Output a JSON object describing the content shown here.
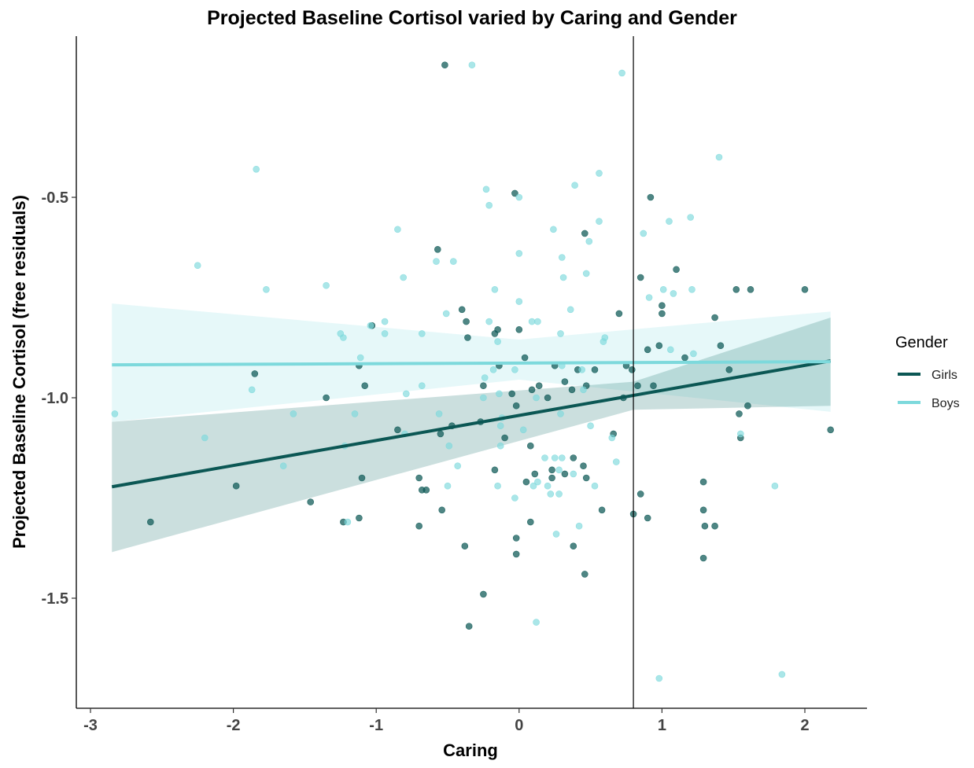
{
  "chart_data": {
    "type": "scatter",
    "title": "Projected Baseline Cortisol varied by Caring and Gender",
    "xlabel": "Caring",
    "ylabel": "Projected Baseline Cortisol (free residuals)",
    "xlim": [
      -3.1,
      2.45
    ],
    "ylim": [
      -1.78,
      -0.1
    ],
    "x_ticks": [
      -3,
      -2,
      -1,
      0,
      1,
      2
    ],
    "x_tick_labels": [
      "-3",
      "-2",
      "-1",
      "0",
      "1",
      "2"
    ],
    "y_ticks": [
      -0.5,
      -1.0,
      -1.5
    ],
    "y_tick_labels": [
      "-0.5",
      "-1.0",
      "-1.5"
    ],
    "vline_x": 0.8,
    "grid": false,
    "legend": {
      "title": "Gender",
      "position": "right"
    },
    "series": [
      {
        "name": "Girls",
        "color": "#0b5754",
        "fit": {
          "x": [
            -2.85,
            2.18
          ],
          "y": [
            -1.222,
            -0.908
          ]
        },
        "band": {
          "x": [
            -2.85,
            0.8,
            2.18
          ],
          "upper": [
            -1.06,
            -0.96,
            -0.8
          ],
          "lower": [
            -1.385,
            -1.03,
            -1.02
          ]
        },
        "points": [
          [
            -0.52,
            -0.17
          ],
          [
            -0.03,
            -0.49
          ],
          [
            -0.57,
            -0.63
          ],
          [
            0.92,
            -0.5
          ],
          [
            0.46,
            -0.59
          ],
          [
            1.1,
            -0.68
          ],
          [
            0.85,
            -0.7
          ],
          [
            1.52,
            -0.73
          ],
          [
            1.62,
            -0.73
          ],
          [
            2.0,
            -0.73
          ],
          [
            1.0,
            -0.77
          ],
          [
            1.0,
            -0.79
          ],
          [
            0.7,
            -0.79
          ],
          [
            -0.4,
            -0.78
          ],
          [
            -0.37,
            -0.81
          ],
          [
            -1.03,
            -0.82
          ],
          [
            -0.15,
            -0.83
          ],
          [
            0.0,
            -0.83
          ],
          [
            1.37,
            -0.8
          ],
          [
            -0.17,
            -0.84
          ],
          [
            -0.36,
            -0.85
          ],
          [
            1.41,
            -0.87
          ],
          [
            0.98,
            -0.87
          ],
          [
            0.9,
            -0.88
          ],
          [
            1.16,
            -0.9
          ],
          [
            -1.12,
            -0.92
          ],
          [
            -0.14,
            -0.92
          ],
          [
            -1.85,
            -0.94
          ],
          [
            0.04,
            -0.9
          ],
          [
            0.25,
            -0.92
          ],
          [
            0.41,
            -0.93
          ],
          [
            0.53,
            -0.93
          ],
          [
            0.75,
            -0.92
          ],
          [
            0.79,
            -0.93
          ],
          [
            0.83,
            -0.97
          ],
          [
            0.94,
            -0.97
          ],
          [
            1.47,
            -0.93
          ],
          [
            -0.25,
            -0.97
          ],
          [
            -1.08,
            -0.97
          ],
          [
            0.47,
            -0.97
          ],
          [
            0.32,
            -0.96
          ],
          [
            0.37,
            -0.98
          ],
          [
            0.09,
            -0.98
          ],
          [
            0.14,
            -0.97
          ],
          [
            -1.35,
            -1.0
          ],
          [
            0.2,
            -1.0
          ],
          [
            -0.05,
            -0.99
          ],
          [
            -0.02,
            -1.02
          ],
          [
            0.73,
            -1.0
          ],
          [
            1.54,
            -1.04
          ],
          [
            1.6,
            -1.02
          ],
          [
            -0.47,
            -1.07
          ],
          [
            -0.27,
            -1.06
          ],
          [
            -0.55,
            -1.09
          ],
          [
            -0.85,
            -1.08
          ],
          [
            -0.1,
            -1.1
          ],
          [
            0.66,
            -1.09
          ],
          [
            2.18,
            -1.08
          ],
          [
            1.55,
            -1.1
          ],
          [
            0.08,
            -1.12
          ],
          [
            0.38,
            -1.15
          ],
          [
            0.45,
            -1.17
          ],
          [
            0.11,
            -1.19
          ],
          [
            0.23,
            -1.18
          ],
          [
            0.32,
            -1.19
          ],
          [
            -0.17,
            -1.18
          ],
          [
            0.05,
            -1.21
          ],
          [
            0.23,
            -1.2
          ],
          [
            0.47,
            -1.2
          ],
          [
            1.29,
            -1.21
          ],
          [
            -1.98,
            -1.22
          ],
          [
            -0.7,
            -1.2
          ],
          [
            -1.1,
            -1.2
          ],
          [
            -0.68,
            -1.23
          ],
          [
            -0.65,
            -1.23
          ],
          [
            0.85,
            -1.24
          ],
          [
            -1.46,
            -1.26
          ],
          [
            -0.54,
            -1.28
          ],
          [
            0.58,
            -1.28
          ],
          [
            0.8,
            -1.29
          ],
          [
            0.9,
            -1.3
          ],
          [
            1.29,
            -1.28
          ],
          [
            -2.58,
            -1.31
          ],
          [
            -1.12,
            -1.3
          ],
          [
            -1.23,
            -1.31
          ],
          [
            -0.7,
            -1.32
          ],
          [
            0.08,
            -1.31
          ],
          [
            1.3,
            -1.32
          ],
          [
            1.37,
            -1.32
          ],
          [
            0.38,
            -1.37
          ],
          [
            -0.38,
            -1.37
          ],
          [
            -0.02,
            -1.35
          ],
          [
            -0.02,
            -1.39
          ],
          [
            1.29,
            -1.4
          ],
          [
            0.46,
            -1.44
          ],
          [
            -0.25,
            -1.49
          ],
          [
            -0.35,
            -1.57
          ]
        ]
      },
      {
        "name": "Boys",
        "color": "#7dd9dc",
        "fit": {
          "x": [
            -2.85,
            2.18
          ],
          "y": [
            -0.918,
            -0.91
          ]
        },
        "band": {
          "x": [
            -2.85,
            0.0,
            2.18
          ],
          "upper": [
            -0.765,
            -0.855,
            -0.785
          ],
          "lower": [
            -1.06,
            -0.955,
            -1.035
          ]
        },
        "points": [
          [
            -0.33,
            -0.17
          ],
          [
            0.72,
            -0.19
          ],
          [
            1.4,
            -0.4
          ],
          [
            -1.84,
            -0.43
          ],
          [
            0.56,
            -0.44
          ],
          [
            0.39,
            -0.47
          ],
          [
            -0.23,
            -0.48
          ],
          [
            -0.21,
            -0.52
          ],
          [
            0.0,
            -0.5
          ],
          [
            1.2,
            -0.55
          ],
          [
            0.56,
            -0.56
          ],
          [
            1.05,
            -0.56
          ],
          [
            0.24,
            -0.58
          ],
          [
            -0.85,
            -0.58
          ],
          [
            0.87,
            -0.59
          ],
          [
            0.49,
            -0.61
          ],
          [
            0.3,
            -0.65
          ],
          [
            0.0,
            -0.64
          ],
          [
            -0.58,
            -0.66
          ],
          [
            -0.46,
            -0.66
          ],
          [
            -2.25,
            -0.67
          ],
          [
            0.47,
            -0.69
          ],
          [
            0.31,
            -0.7
          ],
          [
            -0.81,
            -0.7
          ],
          [
            -1.35,
            -0.72
          ],
          [
            -1.77,
            -0.73
          ],
          [
            -0.17,
            -0.73
          ],
          [
            1.01,
            -0.73
          ],
          [
            1.21,
            -0.73
          ],
          [
            1.08,
            -0.74
          ],
          [
            0.91,
            -0.75
          ],
          [
            0.0,
            -0.76
          ],
          [
            -0.51,
            -0.79
          ],
          [
            0.09,
            -0.81
          ],
          [
            -0.94,
            -0.81
          ],
          [
            -0.21,
            -0.81
          ],
          [
            0.13,
            -0.81
          ],
          [
            0.36,
            -0.78
          ],
          [
            -1.04,
            -0.82
          ],
          [
            -1.25,
            -0.84
          ],
          [
            -0.94,
            -0.84
          ],
          [
            -1.23,
            -0.85
          ],
          [
            -0.68,
            -0.84
          ],
          [
            0.29,
            -0.84
          ],
          [
            0.6,
            -0.85
          ],
          [
            0.59,
            -0.86
          ],
          [
            -0.15,
            -0.86
          ],
          [
            1.06,
            -0.88
          ],
          [
            1.22,
            -0.89
          ],
          [
            -1.11,
            -0.9
          ],
          [
            0.3,
            -0.92
          ],
          [
            0.44,
            -0.93
          ],
          [
            -0.18,
            -0.93
          ],
          [
            -0.03,
            -0.93
          ],
          [
            -0.24,
            -0.95
          ],
          [
            -0.68,
            -0.97
          ],
          [
            -0.79,
            -0.99
          ],
          [
            0.45,
            -0.98
          ],
          [
            -1.87,
            -0.98
          ],
          [
            -0.14,
            -0.99
          ],
          [
            -0.25,
            -1.0
          ],
          [
            0.12,
            -1.0
          ],
          [
            -1.15,
            -1.04
          ],
          [
            -1.58,
            -1.04
          ],
          [
            -2.83,
            -1.04
          ],
          [
            -0.56,
            -1.04
          ],
          [
            -0.12,
            -1.05
          ],
          [
            0.29,
            -1.04
          ],
          [
            -0.13,
            -1.07
          ],
          [
            0.5,
            -1.07
          ],
          [
            -0.8,
            -1.09
          ],
          [
            -1.22,
            -1.12
          ],
          [
            -2.2,
            -1.1
          ],
          [
            0.03,
            -1.08
          ],
          [
            0.65,
            -1.1
          ],
          [
            1.55,
            -1.09
          ],
          [
            -0.13,
            -1.12
          ],
          [
            -0.49,
            -1.12
          ],
          [
            0.18,
            -1.15
          ],
          [
            0.25,
            -1.15
          ],
          [
            0.3,
            -1.15
          ],
          [
            0.68,
            -1.16
          ],
          [
            -0.43,
            -1.17
          ],
          [
            -1.65,
            -1.17
          ],
          [
            0.28,
            -1.18
          ],
          [
            0.38,
            -1.19
          ],
          [
            0.13,
            -1.21
          ],
          [
            0.2,
            -1.22
          ],
          [
            -0.15,
            -1.22
          ],
          [
            -0.5,
            -1.22
          ],
          [
            0.1,
            -1.22
          ],
          [
            0.53,
            -1.22
          ],
          [
            1.79,
            -1.22
          ],
          [
            -0.03,
            -1.25
          ],
          [
            0.28,
            -1.24
          ],
          [
            0.22,
            -1.24
          ],
          [
            0.42,
            -1.32
          ],
          [
            -1.2,
            -1.31
          ],
          [
            0.26,
            -1.34
          ],
          [
            0.12,
            -1.56
          ],
          [
            0.98,
            -1.7
          ],
          [
            1.84,
            -1.69
          ]
        ]
      }
    ]
  }
}
